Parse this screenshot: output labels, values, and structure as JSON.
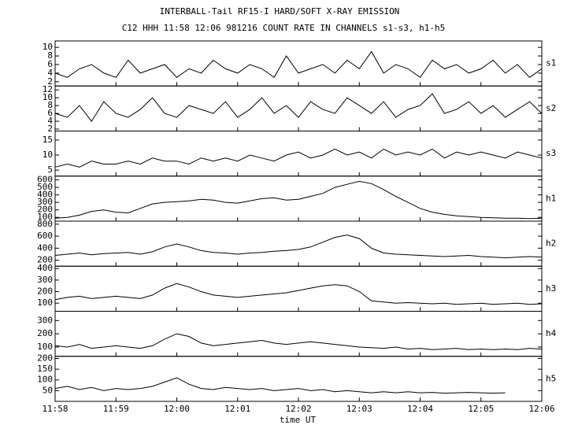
{
  "chart_data": [
    {
      "type": "line",
      "title": "INTERBALL-Tail RF15-I HARD/SOFT X-RAY EMISSION",
      "subtitle": "C12 HHH 11:58 12:06 981216  COUNT RATE IN CHANNELS s1-s3, h1-h5",
      "label": "s1",
      "ylim": [
        1,
        11.5
      ],
      "yticks": [
        2,
        4,
        6,
        8,
        10
      ],
      "values": [
        4,
        3,
        5,
        6,
        4,
        3,
        7,
        4,
        5,
        6,
        3,
        5,
        4,
        7,
        5,
        4,
        6,
        5,
        3,
        8,
        4,
        5,
        6,
        4,
        7,
        5,
        9,
        4,
        6,
        5,
        3,
        7,
        5,
        6,
        4,
        5,
        7,
        4,
        6,
        3,
        5
      ]
    },
    {
      "type": "line",
      "label": "s2",
      "ylim": [
        1.5,
        13
      ],
      "yticks": [
        2,
        4,
        6,
        8,
        10,
        12
      ],
      "values": [
        6,
        5,
        8,
        4,
        9,
        6,
        5,
        7,
        10,
        6,
        5,
        8,
        7,
        6,
        9,
        5,
        7,
        10,
        6,
        8,
        5,
        9,
        7,
        6,
        10,
        8,
        6,
        9,
        5,
        7,
        8,
        11,
        6,
        7,
        9,
        6,
        8,
        5,
        7,
        9,
        6
      ]
    },
    {
      "type": "line",
      "label": "s3",
      "ylim": [
        3,
        18
      ],
      "yticks": [
        5,
        10,
        15
      ],
      "values": [
        6,
        7,
        6,
        8,
        7,
        7,
        8,
        7,
        9,
        8,
        8,
        7,
        9,
        8,
        9,
        8,
        10,
        9,
        8,
        10,
        11,
        9,
        10,
        12,
        10,
        11,
        9,
        12,
        10,
        11,
        10,
        12,
        9,
        11,
        10,
        11,
        10,
        9,
        11,
        10,
        9
      ]
    },
    {
      "type": "line",
      "label": "h1",
      "ylim": [
        50,
        650
      ],
      "yticks": [
        100,
        200,
        300,
        400,
        500,
        600
      ],
      "values": [
        90,
        100,
        130,
        180,
        200,
        170,
        160,
        220,
        280,
        300,
        310,
        320,
        340,
        330,
        300,
        290,
        320,
        350,
        360,
        330,
        340,
        380,
        420,
        500,
        540,
        580,
        550,
        470,
        380,
        300,
        220,
        170,
        140,
        120,
        110,
        100,
        95,
        90,
        90,
        85,
        90
      ]
    },
    {
      "type": "line",
      "label": "h2",
      "ylim": [
        100,
        850
      ],
      "yticks": [
        200,
        400,
        600,
        800
      ],
      "values": [
        280,
        300,
        320,
        290,
        310,
        320,
        330,
        300,
        340,
        420,
        470,
        420,
        360,
        330,
        320,
        300,
        320,
        330,
        350,
        360,
        380,
        420,
        500,
        580,
        620,
        560,
        400,
        320,
        300,
        290,
        280,
        270,
        260,
        270,
        280,
        260,
        250,
        240,
        250,
        260,
        250
      ]
    },
    {
      "type": "line",
      "label": "h3",
      "ylim": [
        30,
        420
      ],
      "yticks": [
        100,
        200,
        300,
        400
      ],
      "values": [
        130,
        150,
        160,
        140,
        150,
        160,
        150,
        140,
        170,
        230,
        270,
        240,
        200,
        170,
        160,
        150,
        160,
        170,
        180,
        190,
        210,
        230,
        250,
        260,
        250,
        200,
        120,
        110,
        100,
        105,
        100,
        95,
        100,
        90,
        95,
        100,
        90,
        95,
        100,
        90,
        95
      ]
    },
    {
      "type": "line",
      "label": "h4",
      "ylim": [
        30,
        370
      ],
      "yticks": [
        100,
        200,
        300
      ],
      "values": [
        110,
        100,
        120,
        90,
        100,
        110,
        100,
        90,
        110,
        160,
        200,
        180,
        130,
        110,
        120,
        130,
        140,
        150,
        130,
        120,
        130,
        140,
        130,
        120,
        110,
        100,
        95,
        90,
        100,
        85,
        90,
        80,
        85,
        90,
        80,
        85,
        80,
        85,
        80,
        90,
        85
      ]
    },
    {
      "type": "line",
      "label": "h5",
      "ylim": [
        0,
        210
      ],
      "yticks": [
        50,
        100,
        150,
        200
      ],
      "x_label": "time UT",
      "xlim": [
        0,
        8
      ],
      "xticks": [
        {
          "value": 0,
          "label": "11:58"
        },
        {
          "value": 1,
          "label": "11:59"
        },
        {
          "value": 2,
          "label": "12:00"
        },
        {
          "value": 3,
          "label": "12:01"
        },
        {
          "value": 4,
          "label": "12:02"
        },
        {
          "value": 5,
          "label": "12:03"
        },
        {
          "value": 6,
          "label": "12:04"
        },
        {
          "value": 7,
          "label": "12:05"
        },
        {
          "value": 8,
          "label": "12:06"
        }
      ],
      "x": [
        0,
        0.2,
        0.4,
        0.6,
        0.8,
        1,
        1.2,
        1.4,
        1.6,
        1.8,
        2,
        2.2,
        2.4,
        2.6,
        2.8,
        3,
        3.2,
        3.4,
        3.6,
        3.8,
        4,
        4.2,
        4.4,
        4.6,
        4.8,
        5,
        5.2,
        5.4,
        5.6,
        5.8,
        6,
        6.2,
        6.4,
        6.6,
        6.8,
        7,
        7.2,
        7.4,
        7.6,
        7.8,
        8
      ],
      "values": [
        60,
        70,
        55,
        65,
        50,
        60,
        55,
        60,
        70,
        90,
        110,
        80,
        60,
        55,
        65,
        60,
        55,
        60,
        50,
        55,
        60,
        50,
        55,
        45,
        50,
        45,
        40,
        45,
        40,
        45,
        40,
        42,
        38,
        40,
        42,
        40,
        38,
        40,
        null,
        null,
        null
      ]
    }
  ]
}
